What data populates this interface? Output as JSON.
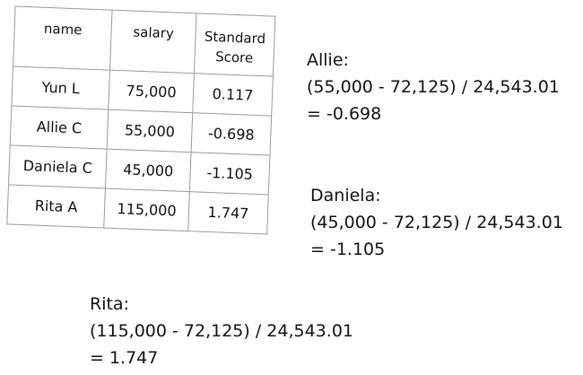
{
  "table": {
    "headers": [
      "name",
      "salary",
      "Standard Score"
    ],
    "header_std_line1": "Standard",
    "header_std_line2": "Score",
    "rows": [
      {
        "name": "Yun L",
        "salary": "75,000",
        "score": "0.117"
      },
      {
        "name": "Allie C",
        "salary": "55,000",
        "score": "-0.698"
      },
      {
        "name": "Daniela C",
        "salary": "45,000",
        "score": "-1.105"
      },
      {
        "name": "Rita A",
        "salary": "115,000",
        "score": "1.747"
      }
    ]
  },
  "calculations": {
    "allie": {
      "label": "Allie:",
      "formula": "(55,000 - 72,125) / 24,543.01",
      "result": "= -0.698"
    },
    "daniela": {
      "label": "Daniela:",
      "formula": "(45,000 - 72,125) / 24,543.01",
      "result": "= -1.105"
    },
    "rita": {
      "label": "Rita:",
      "formula": "(115,000 - 72,125) / 24,543.01",
      "result": "= 1.747"
    }
  }
}
